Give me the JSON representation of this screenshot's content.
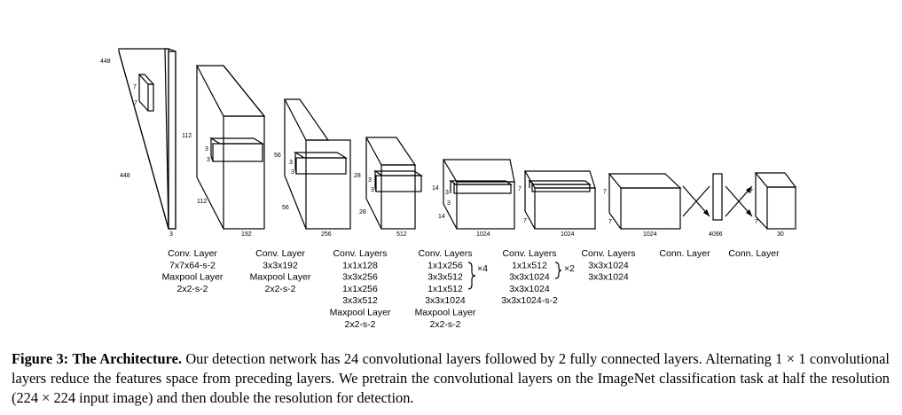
{
  "dims": {
    "input_h": "448",
    "input_w": "448",
    "input_c": "3",
    "input_k1": "7",
    "input_k2": "7",
    "l1_h": "112",
    "l1_w": "112",
    "l1_c": "192",
    "l1_k1": "3",
    "l1_k2": "3",
    "l2_h": "56",
    "l2_w": "56",
    "l2_c": "256",
    "l2_k1": "3",
    "l2_k2": "3",
    "l3_h": "28",
    "l3_w": "28",
    "l3_c": "512",
    "l3_k1": "3",
    "l3_k2": "3",
    "l4_h": "14",
    "l4_w": "14",
    "l4_c": "1024",
    "l4_k1": "3",
    "l4_k2": "3",
    "l5_h": "7",
    "l5_w": "7",
    "l5_c": "1024",
    "l6_h": "7",
    "l6_c": "1024",
    "fc1": "4096",
    "out_h": "7",
    "out_w": "7",
    "out_c": "30"
  },
  "captions": {
    "c1": [
      "Conv. Layer",
      "7x7x64-s-2",
      "Maxpool Layer",
      "2x2-s-2"
    ],
    "c2": [
      "Conv. Layer",
      "3x3x192",
      "Maxpool Layer",
      "2x2-s-2"
    ],
    "c3": [
      "Conv. Layers",
      "1x1x128",
      "3x3x256",
      "1x1x256",
      "3x3x512",
      "Maxpool Layer",
      "2x2-s-2"
    ],
    "c4": [
      "Conv. Layers",
      "1x1x256",
      "3x3x512",
      "1x1x512",
      "3x3x1024",
      "Maxpool Layer",
      "2x2-s-2"
    ],
    "c4_repeat": "×4",
    "c5": [
      "Conv. Layers",
      "1x1x512",
      "3x3x1024",
      "3x3x1024",
      "3x3x1024-s-2"
    ],
    "c5_repeat": "×2",
    "c6": [
      "Conv. Layers",
      "3x3x1024",
      "3x3x1024"
    ],
    "c7": [
      "Conn. Layer"
    ],
    "c8": [
      "Conn. Layer"
    ]
  },
  "figure": {
    "label": "Figure 3:",
    "title": "The Architecture.",
    "body": " Our detection network has 24 convolutional layers followed by 2 fully connected layers. Alternating 1 × 1 convolutional layers reduce the features space from preceding layers. We pretrain the convolutional layers on the ImageNet classification task at half the resolution (224 × 224 input image) and then double the resolution for detection."
  }
}
